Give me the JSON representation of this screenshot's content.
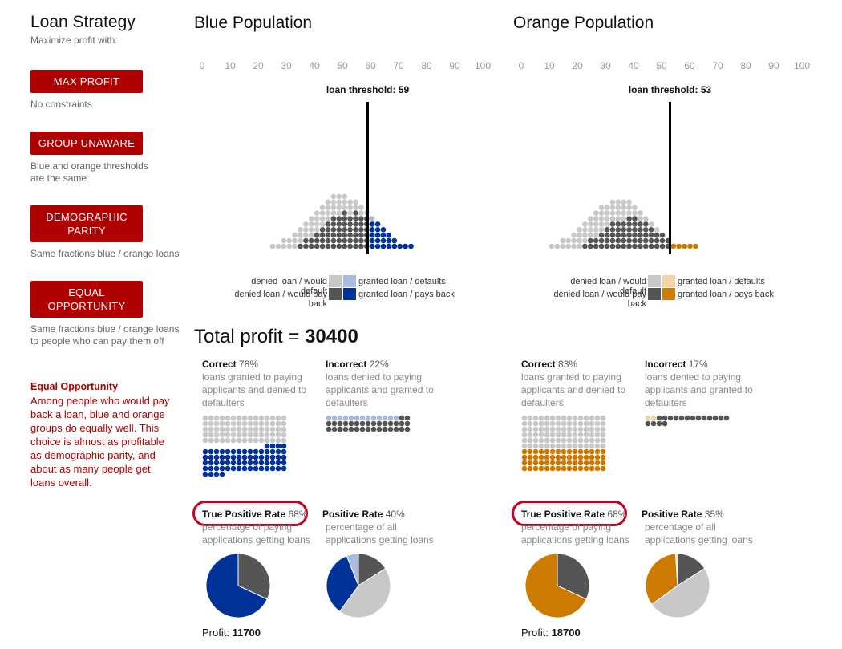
{
  "sidebar": {
    "title": "Loan Strategy",
    "subtitle": "Maximize profit with:",
    "buttons": [
      {
        "label": "MAX PROFIT",
        "desc": "No constraints"
      },
      {
        "label": "GROUP UNAWARE",
        "desc": "Blue and orange thresholds are the same"
      },
      {
        "label": "DEMOGRAPHIC PARITY",
        "desc": "Same fractions blue / orange loans"
      },
      {
        "label": "EQUAL OPPORTUNITY",
        "desc": "Same fractions blue / orange loans to people who can pay them off"
      }
    ],
    "explanation_title": "Equal Opportunity",
    "explanation_text": "Among people who would pay back a loan, blue and orange groups do equally well. This choice is almost as profitable as demographic parity, and about as many people get loans overall."
  },
  "total_profit": {
    "label": "Total profit = ",
    "value": "30400"
  },
  "scale_ticks": [
    "0",
    "10",
    "20",
    "30",
    "40",
    "50",
    "60",
    "70",
    "80",
    "90",
    "100"
  ],
  "legend": {
    "denied_default": "denied loan / would default",
    "denied_pay": "denied loan / would pay back",
    "granted_default": "granted loan / defaults",
    "granted_pay": "granted loan / pays back"
  },
  "stats_text": {
    "correct_label": "Correct",
    "correct_desc": "loans granted to paying applicants and denied to defaulters",
    "incorrect_label": "Incorrect",
    "incorrect_desc": "loans denied to paying applicants and granted to defaulters",
    "tpr_label": "True Positive Rate",
    "tpr_desc": "percentage of paying applications getting loans",
    "pr_label": "Positive Rate",
    "pr_desc": "percentage of all applications getting loans",
    "profit_label": "Profit: "
  },
  "colors": {
    "denied_default": "#c8c8c8",
    "denied_pay": "#555555",
    "accent": "#b00000",
    "highlight_ring": "#c8001e"
  },
  "populations": [
    {
      "id": "blue",
      "title": "Blue Population",
      "threshold_label": "loan threshold: 59",
      "threshold": 59,
      "granted_pay_color": "#003399",
      "granted_default_color": "#a9bce0",
      "correct_pct": "78%",
      "incorrect_pct": "22%",
      "tpr_pct": "68%",
      "pr_pct": "40%",
      "profit": "11700",
      "tpr_pie": {
        "granted_pays_back": 68,
        "denied_would_pay": 32
      },
      "pr_pie": {
        "granted_pays_back": 34,
        "granted_defaults": 6,
        "denied_would_pay": 16,
        "denied_would_default": 44
      }
    },
    {
      "id": "orange",
      "title": "Orange Population",
      "threshold_label": "loan threshold: 53",
      "threshold": 53,
      "granted_pay_color": "#cc7a00",
      "granted_default_color": "#f2d4a8",
      "correct_pct": "83%",
      "incorrect_pct": "17%",
      "tpr_pct": "68%",
      "pr_pct": "35%",
      "profit": "18700",
      "tpr_pie": {
        "granted_pays_back": 68,
        "denied_would_pay": 32
      },
      "pr_pie": {
        "granted_pays_back": 34,
        "granted_defaults": 1,
        "denied_would_pay": 16,
        "denied_would_default": 49
      }
    }
  ]
}
